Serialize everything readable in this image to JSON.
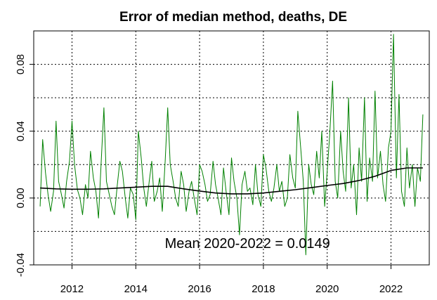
{
  "chart_data": {
    "type": "line",
    "title": "Error of median method, deaths, DE",
    "xlabel": "",
    "ylabel": "",
    "xlim": [
      2010.8,
      2023.2
    ],
    "ylim": [
      -0.04,
      0.1
    ],
    "x_ticks": [
      2012,
      2014,
      2016,
      2018,
      2020,
      2022
    ],
    "x_tick_labels": [
      "2012",
      "2014",
      "2016",
      "2018",
      "2020",
      "2022"
    ],
    "y_ticks": [
      -0.04,
      0.0,
      0.04,
      0.08
    ],
    "y_tick_labels": [
      "-0.04",
      "0.00",
      "0.04",
      "0.08"
    ],
    "grid": true,
    "annotation": {
      "text": "Mean 2020-2022 = 0.0149",
      "x": 2017.5,
      "y": -0.03
    },
    "series": [
      {
        "color": "#008000",
        "x": [
          2011.0,
          2011.08,
          2011.17,
          2011.25,
          2011.33,
          2011.42,
          2011.5,
          2011.58,
          2011.67,
          2011.75,
          2011.83,
          2011.92,
          2012.0,
          2012.08,
          2012.17,
          2012.25,
          2012.33,
          2012.42,
          2012.5,
          2012.58,
          2012.67,
          2012.75,
          2012.83,
          2012.92,
          2013.0,
          2013.08,
          2013.17,
          2013.25,
          2013.33,
          2013.42,
          2013.5,
          2013.58,
          2013.67,
          2013.75,
          2013.83,
          2013.92,
          2014.0,
          2014.08,
          2014.17,
          2014.25,
          2014.33,
          2014.42,
          2014.5,
          2014.58,
          2014.67,
          2014.75,
          2014.83,
          2014.92,
          2015.0,
          2015.08,
          2015.17,
          2015.25,
          2015.33,
          2015.42,
          2015.5,
          2015.58,
          2015.67,
          2015.75,
          2015.83,
          2015.92,
          2016.0,
          2016.08,
          2016.17,
          2016.25,
          2016.33,
          2016.42,
          2016.5,
          2016.58,
          2016.67,
          2016.75,
          2016.83,
          2016.92,
          2017.0,
          2017.08,
          2017.17,
          2017.25,
          2017.33,
          2017.42,
          2017.5,
          2017.58,
          2017.67,
          2017.75,
          2017.83,
          2017.92,
          2018.0,
          2018.08,
          2018.17,
          2018.25,
          2018.33,
          2018.42,
          2018.5,
          2018.58,
          2018.67,
          2018.75,
          2018.83,
          2018.92,
          2019.0,
          2019.08,
          2019.17,
          2019.25,
          2019.33,
          2019.42,
          2019.5,
          2019.58,
          2019.67,
          2019.75,
          2019.83,
          2019.92,
          2020.0,
          2020.08,
          2020.17,
          2020.25,
          2020.33,
          2020.42,
          2020.5,
          2020.58,
          2020.67,
          2020.75,
          2020.83,
          2020.92,
          2021.0,
          2021.08,
          2021.17,
          2021.25,
          2021.33,
          2021.42,
          2021.5,
          2021.58,
          2021.67,
          2021.75,
          2021.83,
          2021.92,
          2022.0,
          2022.08,
          2022.17,
          2022.25,
          2022.33,
          2022.42,
          2022.5,
          2022.58,
          2022.67,
          2022.75,
          2022.83,
          2022.92,
          2023.0
        ],
        "values": [
          -0.005,
          0.035,
          0.015,
          0.002,
          -0.008,
          0.004,
          0.046,
          0.01,
          0.002,
          -0.006,
          0.01,
          0.022,
          0.046,
          0.02,
          0.005,
          0.0,
          -0.01,
          0.008,
          0.0,
          0.028,
          0.012,
          0.004,
          -0.012,
          0.024,
          0.054,
          0.01,
          0.002,
          -0.005,
          -0.01,
          0.008,
          0.022,
          0.016,
          0.0,
          -0.012,
          0.006,
          0.002,
          -0.013,
          0.04,
          0.024,
          0.006,
          -0.005,
          0.01,
          0.022,
          -0.002,
          0.004,
          0.012,
          -0.008,
          0.022,
          0.054,
          0.02,
          0.01,
          0.0,
          -0.005,
          0.016,
          0.008,
          -0.008,
          0.004,
          0.01,
          0.0,
          -0.01,
          0.02,
          0.016,
          0.008,
          -0.002,
          0.002,
          0.022,
          0.008,
          0.0,
          -0.01,
          0.018,
          0.004,
          -0.01,
          0.024,
          0.01,
          0.0,
          -0.022,
          0.008,
          0.016,
          0.004,
          0.006,
          -0.004,
          0.02,
          0.002,
          -0.005,
          0.026,
          0.018,
          0.004,
          -0.002,
          0.006,
          0.02,
          0.004,
          0.01,
          -0.005,
          0.0,
          0.026,
          0.012,
          0.006,
          0.052,
          0.03,
          0.01,
          -0.034,
          0.02,
          0.008,
          0.002,
          0.028,
          0.012,
          0.04,
          -0.005,
          0.016,
          0.038,
          0.07,
          0.01,
          0.0,
          0.04,
          0.016,
          0.004,
          0.06,
          0.006,
          0.02,
          -0.01,
          0.03,
          0.01,
          0.06,
          -0.002,
          0.024,
          0.01,
          0.064,
          0.012,
          0.028,
          0.008,
          -0.002,
          0.03,
          0.04,
          0.098,
          0.012,
          0.062,
          0.004,
          -0.005,
          0.03,
          0.006,
          0.02,
          -0.005,
          0.018,
          0.01,
          0.05
        ]
      },
      {
        "color": "#000000",
        "x": [
          2011.0,
          2011.5,
          2012.0,
          2012.5,
          2013.0,
          2013.5,
          2014.0,
          2014.5,
          2015.0,
          2015.5,
          2016.0,
          2016.5,
          2017.0,
          2017.5,
          2018.0,
          2018.5,
          2019.0,
          2019.5,
          2020.0,
          2020.5,
          2021.0,
          2021.5,
          2022.0,
          2022.5,
          2023.0
        ],
        "values": [
          0.006,
          0.0055,
          0.0053,
          0.0053,
          0.0055,
          0.006,
          0.0065,
          0.007,
          0.007,
          0.0055,
          0.0042,
          0.003,
          0.0025,
          0.0025,
          0.003,
          0.004,
          0.005,
          0.0062,
          0.0075,
          0.0087,
          0.0105,
          0.013,
          0.0165,
          0.018,
          0.018
        ]
      }
    ]
  }
}
